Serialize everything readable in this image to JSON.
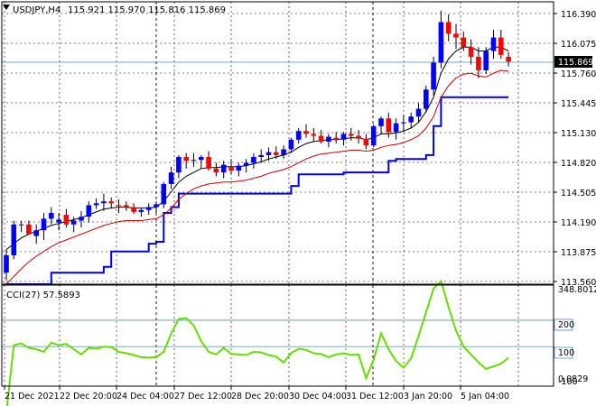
{
  "header": {
    "title": "USDJPY,H4",
    "ohlc": "115.921 115.970 115.816 115.869"
  },
  "price_tag": "115.869",
  "cci": {
    "label": "CCI(27) 57.5893",
    "tags": [
      "348.8012",
      "200",
      "100",
      "0.0829",
      "-100"
    ]
  },
  "colors": {
    "bull": "#0000ff",
    "bear": "#ff0000",
    "wick": "#000000",
    "band_upper": "#000000",
    "band_lower": "#cc0000",
    "stop": "#0000dd",
    "cci": "#66dd00",
    "grid": "#000000",
    "level": "#4f8fb4",
    "tag_bg": "#000000"
  },
  "chart_data": [
    {
      "type": "candlestick",
      "symbol": "USDJPY",
      "timeframe": "H4",
      "y_ticks": [
        "116.390",
        "116.075",
        "115.760",
        "115.445",
        "115.130",
        "114.820",
        "114.505",
        "114.190",
        "113.875",
        "113.560"
      ],
      "x_ticks": [
        "21 Dec 2021",
        "22 Dec 20:00",
        "24 Dec 04:00",
        "27 Dec 12:00",
        "28 Dec 20:00",
        "30 Dec 04:00",
        "31 Dec 12:00",
        "3 Jan 20:00",
        "5 Jan 04:00"
      ],
      "ylim": [
        113.56,
        116.45
      ],
      "candles": [
        [
          113.68,
          113.92,
          113.6,
          113.86
        ],
        [
          113.86,
          114.22,
          113.82,
          114.18
        ],
        [
          114.18,
          114.22,
          114.1,
          114.18
        ],
        [
          114.18,
          114.22,
          114.1,
          114.08
        ],
        [
          114.06,
          114.18,
          113.98,
          114.12
        ],
        [
          114.12,
          114.3,
          114.02,
          114.24
        ],
        [
          114.24,
          114.36,
          114.18,
          114.3
        ],
        [
          114.2,
          114.3,
          114.12,
          114.23
        ],
        [
          114.28,
          114.34,
          114.15,
          114.18
        ],
        [
          114.18,
          114.26,
          114.1,
          114.22
        ],
        [
          114.22,
          114.32,
          114.15,
          114.26
        ],
        [
          114.26,
          114.42,
          114.2,
          114.38
        ],
        [
          114.38,
          114.45,
          114.34,
          114.4
        ],
        [
          114.4,
          114.5,
          114.32,
          114.42
        ],
        [
          114.42,
          114.46,
          114.35,
          114.4
        ],
        [
          114.38,
          114.44,
          114.3,
          114.37
        ],
        [
          114.38,
          114.42,
          114.32,
          114.36
        ],
        [
          114.36,
          114.4,
          114.29,
          114.31
        ],
        [
          114.31,
          114.35,
          114.26,
          114.33
        ],
        [
          114.33,
          114.4,
          114.28,
          114.36
        ],
        [
          114.36,
          114.42,
          114.3,
          114.39
        ],
        [
          114.39,
          114.62,
          114.35,
          114.6
        ],
        [
          114.6,
          114.78,
          114.55,
          114.72
        ],
        [
          114.72,
          114.9,
          114.66,
          114.88
        ],
        [
          114.88,
          114.92,
          114.76,
          114.84
        ],
        [
          114.84,
          114.92,
          114.78,
          114.85
        ],
        [
          114.85,
          114.9,
          114.76,
          114.88
        ],
        [
          114.88,
          114.94,
          114.74,
          114.76
        ],
        [
          114.76,
          114.82,
          114.68,
          114.72
        ],
        [
          114.72,
          114.84,
          114.66,
          114.8
        ],
        [
          114.78,
          114.86,
          114.7,
          114.74
        ],
        [
          114.74,
          114.82,
          114.68,
          114.79
        ],
        [
          114.79,
          114.86,
          114.72,
          114.82
        ],
        [
          114.82,
          114.92,
          114.76,
          114.88
        ],
        [
          114.88,
          114.96,
          114.82,
          114.9
        ],
        [
          114.9,
          114.98,
          114.84,
          114.93
        ],
        [
          114.93,
          114.99,
          114.86,
          114.9
        ],
        [
          114.9,
          115.0,
          114.86,
          114.96
        ],
        [
          114.96,
          115.08,
          114.92,
          115.06
        ],
        [
          115.06,
          115.18,
          115.02,
          115.15
        ],
        [
          115.15,
          115.22,
          115.08,
          115.12
        ],
        [
          115.12,
          115.18,
          115.04,
          115.1
        ],
        [
          115.1,
          115.16,
          115.02,
          115.04
        ],
        [
          115.04,
          115.12,
          114.98,
          115.09
        ],
        [
          115.08,
          115.14,
          115.02,
          115.06
        ],
        [
          115.06,
          115.14,
          115.0,
          115.12
        ],
        [
          115.12,
          115.18,
          115.05,
          115.1
        ],
        [
          115.1,
          115.16,
          115.02,
          115.07
        ],
        [
          115.07,
          115.12,
          114.96,
          115.0
        ],
        [
          115.0,
          115.22,
          114.98,
          115.2
        ],
        [
          115.2,
          115.3,
          115.12,
          115.28
        ],
        [
          115.28,
          115.34,
          115.08,
          115.14
        ],
        [
          115.14,
          115.28,
          115.06,
          115.23
        ],
        [
          115.23,
          115.32,
          115.14,
          115.24
        ],
        [
          115.24,
          115.34,
          115.18,
          115.3
        ],
        [
          115.3,
          115.44,
          115.24,
          115.38
        ],
        [
          115.38,
          115.62,
          115.34,
          115.58
        ],
        [
          115.58,
          115.92,
          115.52,
          115.86
        ],
        [
          115.86,
          116.4,
          115.8,
          116.28
        ],
        [
          116.28,
          116.36,
          116.08,
          116.16
        ],
        [
          116.16,
          116.26,
          116.0,
          116.12
        ],
        [
          116.12,
          116.18,
          115.98,
          116.02
        ],
        [
          116.02,
          116.1,
          115.84,
          115.92
        ],
        [
          115.92,
          116.02,
          115.7,
          115.78
        ],
        [
          115.78,
          116.02,
          115.74,
          115.98
        ],
        [
          115.98,
          116.2,
          115.9,
          116.12
        ],
        [
          116.12,
          116.2,
          115.9,
          115.94
        ],
        [
          115.92,
          115.97,
          115.82,
          115.87
        ]
      ],
      "upper_band": [
        113.92,
        113.98,
        114.04,
        114.08,
        114.11,
        114.14,
        114.17,
        114.19,
        114.21,
        114.23,
        114.25,
        114.28,
        114.31,
        114.34,
        114.35,
        114.36,
        114.36,
        114.35,
        114.35,
        114.35,
        114.36,
        114.42,
        114.52,
        114.62,
        114.68,
        114.72,
        114.76,
        114.77,
        114.77,
        114.78,
        114.78,
        114.78,
        114.79,
        114.81,
        114.83,
        114.86,
        114.88,
        114.9,
        114.93,
        114.98,
        115.02,
        115.04,
        115.05,
        115.06,
        115.06,
        115.07,
        115.08,
        115.08,
        115.06,
        115.08,
        115.12,
        115.12,
        115.13,
        115.15,
        115.18,
        115.24,
        115.35,
        115.5,
        115.75,
        115.9,
        115.98,
        116.02,
        116.02,
        115.98,
        115.98,
        116.02,
        116.02,
        115.98
      ],
      "lower_band": [
        113.56,
        113.64,
        113.72,
        113.79,
        113.85,
        113.9,
        113.95,
        113.99,
        114.02,
        114.05,
        114.08,
        114.11,
        114.14,
        114.17,
        114.19,
        114.21,
        114.22,
        114.22,
        114.22,
        114.23,
        114.24,
        114.28,
        114.35,
        114.44,
        114.5,
        114.55,
        114.58,
        114.6,
        114.61,
        114.62,
        114.62,
        114.63,
        114.64,
        114.66,
        114.68,
        114.71,
        114.73,
        114.75,
        114.78,
        114.82,
        114.86,
        114.89,
        114.91,
        114.92,
        114.93,
        114.94,
        114.95,
        114.95,
        114.94,
        114.95,
        114.98,
        115.0,
        115.01,
        115.03,
        115.06,
        115.1,
        115.18,
        115.3,
        115.5,
        115.62,
        115.7,
        115.74,
        115.75,
        115.72,
        115.71,
        115.75,
        115.78,
        115.77
      ],
      "stop_line": [
        113.56,
        113.56,
        113.56,
        113.56,
        113.56,
        113.56,
        113.68,
        113.68,
        113.68,
        113.68,
        113.68,
        113.68,
        113.68,
        113.74,
        113.9,
        113.9,
        113.9,
        113.9,
        113.9,
        113.98,
        114.0,
        114.3,
        114.36,
        114.5,
        114.5,
        114.5,
        114.5,
        114.5,
        114.5,
        114.5,
        114.5,
        114.5,
        114.5,
        114.5,
        114.5,
        114.5,
        114.5,
        114.5,
        114.58,
        114.7,
        114.7,
        114.7,
        114.7,
        114.7,
        114.7,
        114.72,
        114.72,
        114.72,
        114.72,
        114.72,
        114.72,
        114.84,
        114.86,
        114.86,
        114.86,
        114.86,
        114.9,
        115.2,
        115.5,
        115.5,
        115.5,
        115.5,
        115.5,
        115.5,
        115.5,
        115.5,
        115.5,
        115.5
      ]
    },
    {
      "type": "line",
      "series": [
        {
          "name": "CCI(27)",
          "values": [
            -150,
            105,
            112,
            95,
            90,
            80,
            115,
            105,
            110,
            90,
            70,
            95,
            92,
            100,
            98,
            80,
            75,
            68,
            60,
            58,
            60,
            80,
            150,
            205,
            208,
            180,
            120,
            80,
            70,
            95,
            72,
            70,
            68,
            80,
            78,
            68,
            62,
            40,
            75,
            92,
            88,
            75,
            72,
            60,
            70,
            75,
            68,
            70,
            -20,
            50,
            150,
            90,
            45,
            20,
            55,
            140,
            230,
            320,
            348,
            250,
            160,
            100,
            70,
            40,
            15,
            25,
            35,
            57.6
          ]
        }
      ],
      "ylim": [
        -150,
        348.8
      ],
      "levels": [
        200,
        100,
        -100
      ]
    }
  ]
}
